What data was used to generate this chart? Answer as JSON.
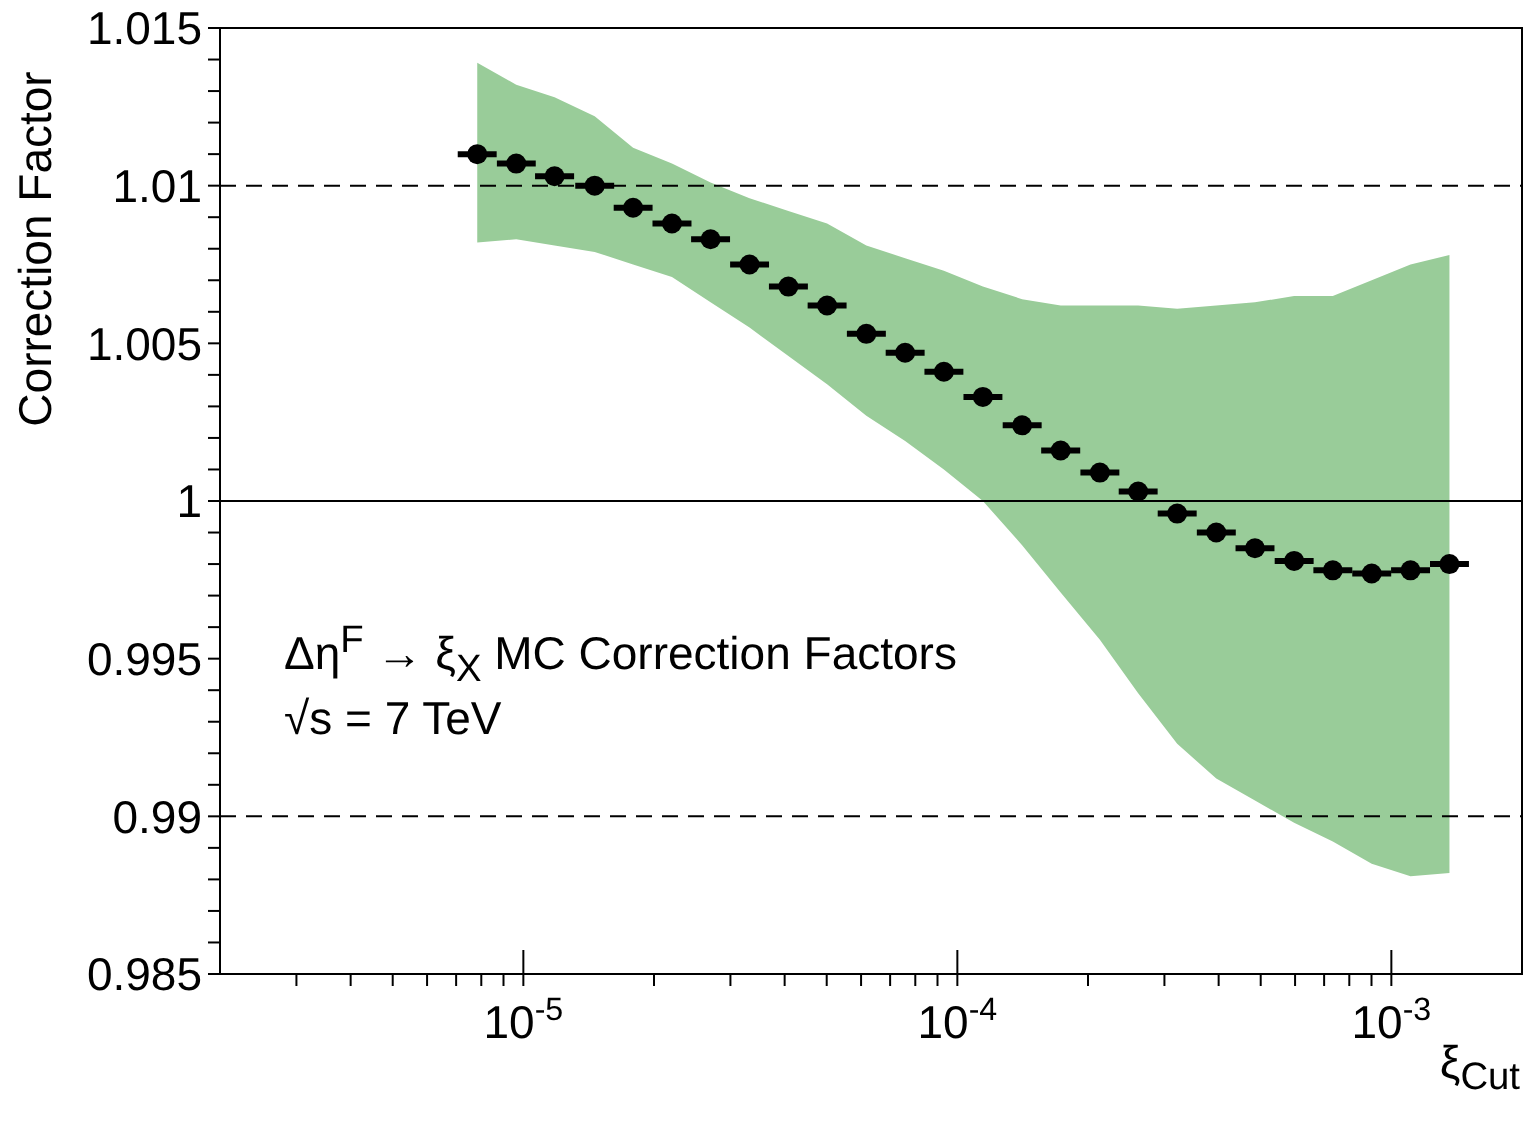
{
  "chart_data": {
    "type": "scatter",
    "xlabel": "ξ$_{Cut}$",
    "ylabel": "Correction Factor",
    "log": "x",
    "marker": "circle",
    "xlim": [
      2e-06,
      0.002
    ],
    "xticks": [
      {
        "value": 3e-06,
        "label": null
      },
      {
        "value": 4e-06,
        "label": null
      },
      {
        "value": 5e-06,
        "label": null
      },
      {
        "value": 6e-06,
        "label": null
      },
      {
        "value": 7e-06,
        "label": null
      },
      {
        "value": 8e-06,
        "label": null
      },
      {
        "value": 9e-06,
        "label": null
      },
      {
        "value": 1e-05,
        "label": "10$^{-5}$"
      },
      {
        "value": 2e-05,
        "label": null
      },
      {
        "value": 3e-05,
        "label": null
      },
      {
        "value": 4e-05,
        "label": null
      },
      {
        "value": 5e-05,
        "label": null
      },
      {
        "value": 6e-05,
        "label": null
      },
      {
        "value": 7e-05,
        "label": null
      },
      {
        "value": 8e-05,
        "label": null
      },
      {
        "value": 9e-05,
        "label": null
      },
      {
        "value": 0.0001,
        "label": "10$^{-4}$"
      },
      {
        "value": 0.0002,
        "label": null
      },
      {
        "value": 0.0003,
        "label": null
      },
      {
        "value": 0.0004,
        "label": null
      },
      {
        "value": 0.0005,
        "label": null
      },
      {
        "value": 0.0006,
        "label": null
      },
      {
        "value": 0.0007,
        "label": null
      },
      {
        "value": 0.0008,
        "label": null
      },
      {
        "value": 0.0009,
        "label": null
      },
      {
        "value": 0.001,
        "label": "10$^{-3}$"
      }
    ],
    "ylim": [
      0.985,
      1.015
    ],
    "yticks": [
      0.985,
      {
        "value": 0.986,
        "label": null
      },
      {
        "value": 0.987,
        "label": null
      },
      {
        "value": 0.988,
        "label": null
      },
      {
        "value": 0.989,
        "label": null
      },
      0.99,
      {
        "value": 0.991,
        "label": null
      },
      {
        "value": 0.992,
        "label": null
      },
      {
        "value": 0.993,
        "label": null
      },
      {
        "value": 0.994,
        "label": null
      },
      0.995,
      {
        "value": 0.996,
        "label": null
      },
      {
        "value": 0.997,
        "label": null
      },
      {
        "value": 0.998,
        "label": null
      },
      {
        "value": 0.999,
        "label": null
      },
      1,
      {
        "value": 1.001,
        "label": null
      },
      {
        "value": 1.002,
        "label": null
      },
      {
        "value": 1.003,
        "label": null
      },
      {
        "value": 1.004,
        "label": null
      },
      1.005,
      {
        "value": 1.006,
        "label": null
      },
      {
        "value": 1.007,
        "label": null
      },
      {
        "value": 1.008,
        "label": null
      },
      {
        "value": 1.009,
        "label": null
      },
      1.01,
      {
        "value": 1.011,
        "label": null
      },
      {
        "value": 1.012,
        "label": null
      },
      {
        "value": 1.013,
        "label": null
      },
      {
        "value": 1.014,
        "label": null
      },
      1.015
    ],
    "ref_lines": [
      {
        "axis": "y",
        "value": 1.01,
        "line_style": "dashed"
      },
      {
        "axis": "y",
        "value": 1,
        "line_style": "solid"
      },
      {
        "axis": "y",
        "value": 0.99,
        "line_style": "dashed"
      }
    ],
    "annotations": [
      "Δη$^{F}$ → ξ$_{X}$ MC Correction Factors",
      "√s = 7 TeV"
    ],
    "series": [
      {
        "color": "#000000",
        "x": [
          7.83e-06,
          9.63e-06,
          1.18e-05,
          1.46e-05,
          1.79e-05,
          2.2e-05,
          2.7e-05,
          3.32e-05,
          4.08e-05,
          5.01e-05,
          6.17e-05,
          7.58e-05,
          9.31e-05,
          0.0001145,
          0.000141,
          0.000173,
          0.000213,
          0.000261,
          0.000321,
          0.000395,
          0.000485,
          0.000597,
          0.000733,
          0.000901,
          0.001107,
          0.001361
        ],
        "values": [
          1.011,
          1.0107,
          1.0103,
          1.01,
          1.0093,
          1.0088,
          1.0083,
          1.0075,
          1.0068,
          1.0062,
          1.0053,
          1.0047,
          1.0041,
          1.0033,
          1.0024,
          1.0016,
          1.0009,
          1.0003,
          0.9996,
          0.999,
          0.9985,
          0.9981,
          0.9978,
          0.9977,
          0.9978,
          0.998
        ],
        "lower": [
          1.0082,
          1.0083,
          1.0081,
          1.0079,
          1.0075,
          1.0071,
          1.0063,
          1.0055,
          1.0046,
          1.0037,
          1.0027,
          1.0019,
          1.001,
          1.0,
          0.9986,
          0.9971,
          0.9956,
          0.9939,
          0.9923,
          0.9912,
          0.9905,
          0.9898,
          0.9892,
          0.9885,
          0.9881,
          0.9882
        ],
        "upper": [
          1.0139,
          1.0132,
          1.0128,
          1.0122,
          1.0112,
          1.0107,
          1.0101,
          1.0096,
          1.0092,
          1.0088,
          1.0081,
          1.0077,
          1.0073,
          1.0068,
          1.0064,
          1.0062,
          1.0062,
          1.0062,
          1.0061,
          1.0062,
          1.0063,
          1.0065,
          1.0065,
          1.007,
          1.0075,
          1.0078
        ],
        "xerrors": [
          [
            7.06e-06,
            8.68e-06
          ],
          [
            8.69e-06,
            1.068e-05
          ],
          [
            1.064e-05,
            1.309e-05
          ],
          [
            1.317e-05,
            1.619e-05
          ],
          [
            1.615e-05,
            1.985e-05
          ],
          [
            1.984e-05,
            2.44e-05
          ],
          [
            2.435e-05,
            2.994e-05
          ],
          [
            2.995e-05,
            3.682e-05
          ],
          [
            3.68e-05,
            4.525e-05
          ],
          [
            4.519e-05,
            5.556e-05
          ],
          [
            5.565e-05,
            6.843e-05
          ],
          [
            6.837e-05,
            8.406e-05
          ],
          [
            8.398e-05,
            0.00010325
          ],
          [
            0.0001033,
            0.000127
          ],
          [
            0.0001272,
            0.0001564
          ],
          [
            0.000156,
            0.0001919
          ],
          [
            0.0001921,
            0.0002362
          ],
          [
            0.0002354,
            0.0002894
          ],
          [
            0.0002895,
            0.000356
          ],
          [
            0.0003563,
            0.0004381
          ],
          [
            0.0004375,
            0.0005379
          ],
          [
            0.0005385,
            0.0006621
          ],
          [
            0.0006612,
            0.0008129
          ],
          [
            0.0008127,
            0.0009992
          ],
          [
            0.0009985,
            0.0012277
          ],
          [
            0.0012276,
            0.0015093
          ]
        ]
      }
    ]
  }
}
